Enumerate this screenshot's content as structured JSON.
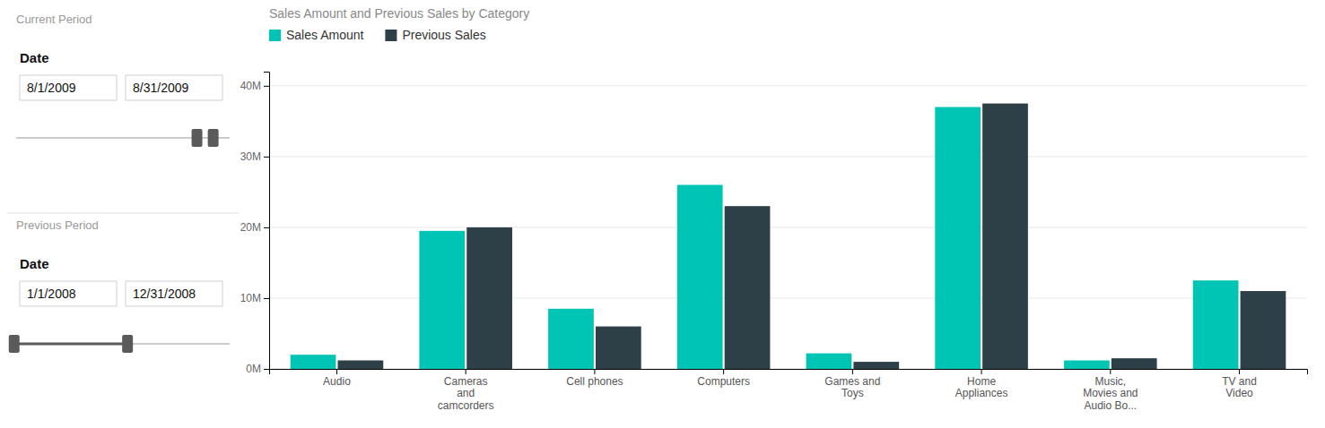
{
  "chart_data": {
    "type": "bar",
    "title": "Sales Amount and Previous Sales by Category",
    "categories": [
      "Audio",
      "Cameras\nand\ncamcorders",
      "Cell phones",
      "Computers",
      "Games and\nToys",
      "Home\nAppliances",
      "Music,\nMovies and\nAudio Bo...",
      "TV and\nVideo"
    ],
    "series": [
      {
        "name": "Sales Amount",
        "color": "#00c4b4",
        "values": [
          2.0,
          19.5,
          8.5,
          26.0,
          2.2,
          37.0,
          1.2,
          12.5
        ]
      },
      {
        "name": "Previous Sales",
        "color": "#2d3f47",
        "values": [
          1.2,
          20.0,
          6.0,
          23.0,
          1.0,
          37.5,
          1.5,
          11.0
        ]
      }
    ],
    "ylim": [
      0,
      42
    ],
    "yticks": [
      {
        "value": 0,
        "label": "0M"
      },
      {
        "value": 10,
        "label": "10M"
      },
      {
        "value": 20,
        "label": "20M"
      },
      {
        "value": 30,
        "label": "30M"
      },
      {
        "value": 40,
        "label": "40M"
      }
    ],
    "grid": true,
    "legend": "upper left",
    "annotations": [
      "Current Period",
      "Date",
      "8/1/2009",
      "8/31/2009",
      "Previous Period",
      "Date",
      "1/1/2008",
      "12/31/2008"
    ]
  }
}
